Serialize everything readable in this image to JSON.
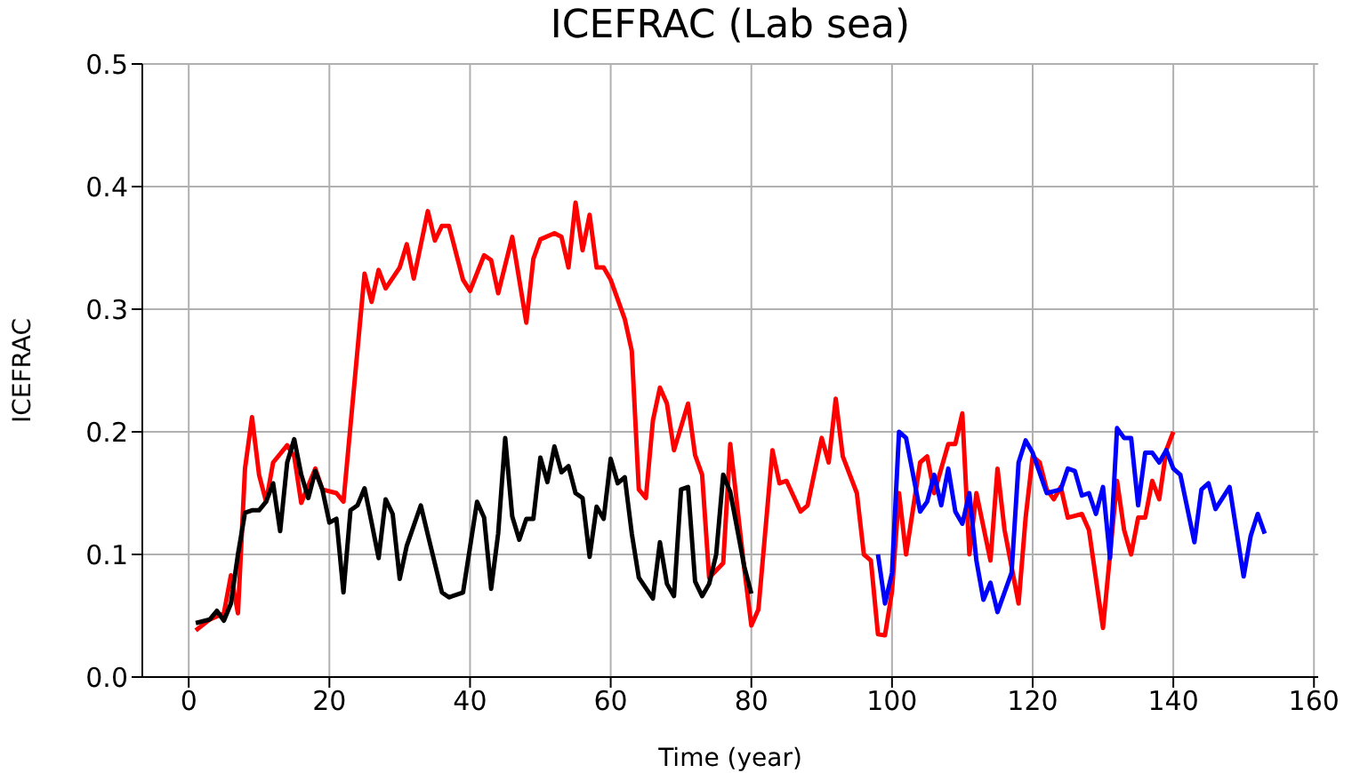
{
  "chart_data": {
    "type": "line",
    "title": "ICEFRAC (Lab sea)",
    "xlabel": "Time (year)",
    "ylabel": "ICEFRAC",
    "xlim": [
      -6.6,
      160.6
    ],
    "xticks": [
      0,
      20,
      40,
      60,
      80,
      100,
      120,
      140,
      160
    ],
    "ylim": [
      0,
      0.5
    ],
    "yticks": [
      {
        "value": 0,
        "label": "0.0"
      },
      0.1,
      0.2,
      0.3,
      0.4,
      0.5
    ],
    "grid": true,
    "legend": false,
    "marker": "none",
    "line_style": "solid",
    "series": [
      {
        "color": "#ff0000",
        "x": [
          1,
          3,
          5,
          6,
          7,
          8,
          9,
          10,
          11,
          12,
          14,
          15,
          16,
          18,
          19,
          21,
          22,
          25,
          26,
          27,
          28,
          30,
          31,
          32,
          34,
          35,
          36,
          37,
          39,
          40,
          42,
          43,
          44,
          46,
          47,
          48,
          49,
          50,
          52,
          53,
          54,
          55,
          56,
          57,
          58,
          59,
          60,
          62,
          63,
          64,
          65,
          66,
          67,
          68,
          69,
          71,
          72,
          73,
          74,
          76,
          77,
          79,
          80,
          81,
          83,
          84,
          85,
          87,
          88,
          90,
          91,
          92,
          93,
          95,
          96,
          97,
          98,
          99,
          100,
          101,
          102,
          104,
          105,
          106,
          108,
          109,
          110,
          111,
          112,
          114,
          115,
          116,
          118,
          119,
          120,
          121,
          122,
          123,
          124,
          125,
          127,
          128,
          130,
          131,
          132,
          133,
          134,
          135,
          136,
          137,
          138,
          139,
          140
        ],
        "values": [
          0.038,
          0.047,
          0.052,
          0.083,
          0.052,
          0.17,
          0.212,
          0.165,
          0.143,
          0.175,
          0.189,
          0.18,
          0.142,
          0.17,
          0.153,
          0.15,
          0.143,
          0.329,
          0.306,
          0.332,
          0.317,
          0.334,
          0.353,
          0.325,
          0.38,
          0.356,
          0.368,
          0.368,
          0.324,
          0.315,
          0.344,
          0.34,
          0.313,
          0.359,
          0.324,
          0.289,
          0.341,
          0.357,
          0.362,
          0.359,
          0.334,
          0.387,
          0.348,
          0.377,
          0.334,
          0.334,
          0.324,
          0.292,
          0.266,
          0.153,
          0.146,
          0.209,
          0.236,
          0.223,
          0.185,
          0.223,
          0.181,
          0.165,
          0.081,
          0.093,
          0.19,
          0.088,
          0.042,
          0.055,
          0.185,
          0.158,
          0.16,
          0.135,
          0.14,
          0.195,
          0.175,
          0.227,
          0.18,
          0.15,
          0.1,
          0.095,
          0.035,
          0.034,
          0.07,
          0.15,
          0.1,
          0.175,
          0.18,
          0.15,
          0.19,
          0.19,
          0.215,
          0.1,
          0.15,
          0.095,
          0.17,
          0.12,
          0.06,
          0.13,
          0.18,
          0.175,
          0.153,
          0.145,
          0.155,
          0.13,
          0.133,
          0.12,
          0.04,
          0.1,
          0.16,
          0.12,
          0.1,
          0.13,
          0.13,
          0.16,
          0.145,
          0.185,
          0.2
        ]
      },
      {
        "color": "#000000",
        "x": [
          1,
          3,
          4,
          5,
          6,
          7,
          8,
          9,
          10,
          11,
          12,
          13,
          14,
          15,
          16,
          17,
          18,
          19,
          20,
          21,
          22,
          23,
          24,
          25,
          26,
          27,
          28,
          29,
          30,
          31,
          33,
          34,
          36,
          37,
          39,
          41,
          42,
          43,
          44,
          45,
          46,
          47,
          48,
          49,
          50,
          51,
          52,
          53,
          54,
          55,
          56,
          57,
          58,
          59,
          60,
          61,
          62,
          63,
          64,
          66,
          67,
          68,
          69,
          70,
          71,
          72,
          73,
          74,
          75,
          76,
          77,
          79,
          80
        ],
        "values": [
          0.044,
          0.047,
          0.054,
          0.046,
          0.06,
          0.1,
          0.134,
          0.136,
          0.136,
          0.143,
          0.158,
          0.119,
          0.175,
          0.194,
          0.165,
          0.146,
          0.168,
          0.153,
          0.126,
          0.129,
          0.069,
          0.136,
          0.14,
          0.154,
          0.126,
          0.097,
          0.145,
          0.133,
          0.08,
          0.107,
          0.14,
          0.116,
          0.069,
          0.065,
          0.069,
          0.143,
          0.13,
          0.072,
          0.117,
          0.195,
          0.131,
          0.112,
          0.129,
          0.129,
          0.179,
          0.159,
          0.188,
          0.167,
          0.172,
          0.15,
          0.146,
          0.098,
          0.139,
          0.129,
          0.178,
          0.158,
          0.163,
          0.117,
          0.081,
          0.064,
          0.11,
          0.076,
          0.066,
          0.153,
          0.155,
          0.078,
          0.066,
          0.076,
          0.1,
          0.165,
          0.151,
          0.09,
          0.068
        ]
      },
      {
        "color": "#0000ff",
        "x": [
          98,
          99,
          100,
          101,
          102,
          104,
          105,
          106,
          107,
          108,
          109,
          110,
          111,
          112,
          113,
          114,
          115,
          117,
          118,
          119,
          120,
          122,
          124,
          125,
          126,
          127,
          128,
          129,
          130,
          131,
          132,
          133,
          134,
          135,
          136,
          137,
          138,
          139,
          140,
          141,
          143,
          144,
          145,
          146,
          148,
          150,
          151,
          152,
          153
        ],
        "values": [
          0.1,
          0.06,
          0.085,
          0.2,
          0.195,
          0.135,
          0.143,
          0.165,
          0.14,
          0.17,
          0.135,
          0.125,
          0.15,
          0.095,
          0.063,
          0.077,
          0.053,
          0.085,
          0.175,
          0.193,
          0.183,
          0.15,
          0.153,
          0.17,
          0.168,
          0.148,
          0.15,
          0.133,
          0.155,
          0.097,
          0.203,
          0.195,
          0.195,
          0.14,
          0.183,
          0.183,
          0.175,
          0.185,
          0.17,
          0.165,
          0.11,
          0.153,
          0.158,
          0.137,
          0.155,
          0.082,
          0.115,
          0.133,
          0.117
        ]
      }
    ]
  }
}
